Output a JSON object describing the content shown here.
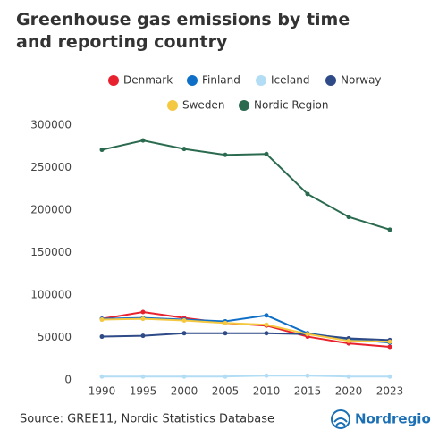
{
  "chart_data": {
    "type": "line",
    "title": "Greenhouse gas emissions by time and reporting country",
    "source": "Source: GREE11, Nordic Statistics Database",
    "logo": "Nordregio",
    "categories": [
      "1990",
      "1995",
      "2000",
      "2005",
      "2010",
      "2015",
      "2020",
      "2023"
    ],
    "ylim": [
      0,
      300000
    ],
    "yticks": [
      0,
      50000,
      100000,
      150000,
      200000,
      250000,
      300000
    ],
    "grid": false,
    "series": [
      {
        "name": "Denmark",
        "color": "#e8212e",
        "values": [
          72000,
          80000,
          73000,
          67000,
          64000,
          51000,
          43000,
          39000
        ]
      },
      {
        "name": "Finland",
        "color": "#0f6fc6",
        "values": [
          72000,
          73000,
          71000,
          69000,
          76000,
          55000,
          48000,
          44000
        ]
      },
      {
        "name": "Iceland",
        "color": "#b3ddf5",
        "values": [
          4000,
          4000,
          4000,
          4000,
          5000,
          5000,
          4000,
          4000
        ]
      },
      {
        "name": "Norway",
        "color": "#2e4a87",
        "values": [
          51000,
          52000,
          55000,
          55000,
          55000,
          54000,
          49000,
          47000
        ]
      },
      {
        "name": "Sweden",
        "color": "#f5c842",
        "values": [
          71000,
          72000,
          70000,
          67000,
          65000,
          54000,
          46000,
          45000
        ]
      },
      {
        "name": "Nordic Region",
        "color": "#2a6a4f",
        "values": [
          271000,
          282000,
          272000,
          265000,
          266000,
          219000,
          192000,
          177000
        ]
      }
    ]
  }
}
